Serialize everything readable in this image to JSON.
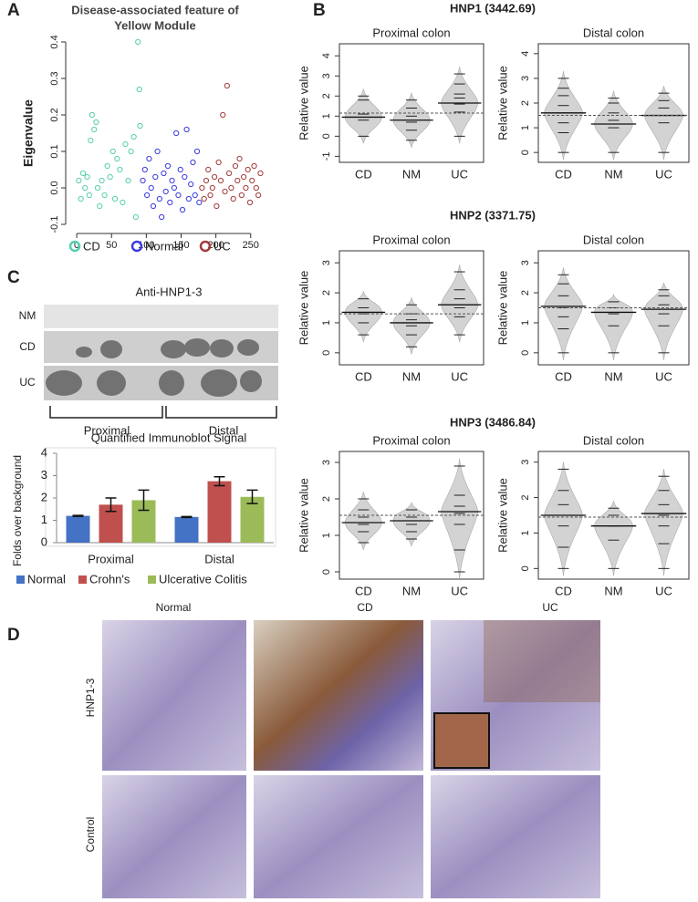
{
  "panel_labels": [
    "A",
    "B",
    "C",
    "D"
  ],
  "panel_b_headers": [
    "HNP1 (3442.69)",
    "HNP2 (3371.75)",
    "HNP3 (3486.84)"
  ],
  "blot": {
    "title": "Anti-HNP1-3",
    "rows": [
      "NM",
      "CD",
      "UC"
    ],
    "groups": [
      "Proximal",
      "Distal"
    ]
  },
  "micrographs": {
    "columns": [
      "Normal",
      "CD",
      "UC"
    ],
    "rows": [
      "HNP1-3",
      "Control"
    ]
  },
  "chart_data": [
    {
      "type": "scatter",
      "title": [
        "Disease-associated feature of",
        "Yellow Module"
      ],
      "ylabel": "Eigenvalue",
      "xlim": [
        -8,
        270
      ],
      "ylim": [
        -0.11,
        0.41
      ],
      "xticks": [
        0,
        50,
        100,
        150,
        200,
        250
      ],
      "yticks": [
        -0.1,
        {
          "value": 0,
          "label": "0.0"
        },
        0.1,
        0.2,
        0.3,
        0.4
      ],
      "series": [
        {
          "name": "CD",
          "color": "#55cfae",
          "x": [
            3,
            6,
            9,
            12,
            15,
            18,
            20,
            22,
            25,
            28,
            30,
            33,
            36,
            40,
            44,
            48,
            52,
            55,
            58,
            62,
            66,
            70,
            74,
            78,
            82,
            85,
            88,
            90,
            91
          ],
          "values": [
            0.02,
            -0.03,
            0.04,
            0.0,
            0.03,
            -0.02,
            0.13,
            0.2,
            0.16,
            0.18,
            0.0,
            -0.05,
            0.02,
            -0.02,
            0.06,
            0.03,
            0.1,
            -0.03,
            0.08,
            0.05,
            -0.04,
            0.12,
            0.02,
            0.1,
            0.14,
            -0.08,
            0.4,
            0.27,
            0.17
          ]
        },
        {
          "name": "Normal",
          "color": "#3b3be0",
          "x": [
            95,
            98,
            101,
            104,
            107,
            110,
            113,
            116,
            119,
            122,
            125,
            128,
            131,
            134,
            137,
            140,
            143,
            146,
            149,
            152,
            155,
            158,
            161,
            164,
            167,
            170,
            173,
            176
          ],
          "values": [
            0.02,
            0.05,
            -0.02,
            0.08,
            0.0,
            -0.05,
            0.03,
            0.1,
            -0.03,
            -0.08,
            0.04,
            -0.01,
            0.06,
            -0.04,
            0.02,
            0.0,
            0.15,
            -0.02,
            0.05,
            -0.06,
            0.03,
            0.16,
            -0.03,
            0.01,
            0.07,
            -0.02,
            0.1,
            -0.04
          ]
        },
        {
          "name": "UC",
          "color": "#a33a3a",
          "x": [
            180,
            183,
            186,
            189,
            192,
            195,
            198,
            201,
            204,
            207,
            210,
            213,
            216,
            219,
            222,
            225,
            228,
            231,
            234,
            237,
            240,
            243,
            246,
            249,
            252,
            255,
            258,
            261,
            264
          ],
          "values": [
            0.0,
            -0.03,
            0.02,
            0.05,
            -0.02,
            0.0,
            0.03,
            -0.05,
            0.07,
            0.02,
            0.2,
            -0.01,
            0.28,
            0.04,
            0.0,
            -0.03,
            0.06,
            0.02,
            0.08,
            -0.02,
            0.03,
            0.0,
            0.05,
            -0.04,
            0.02,
            0.06,
            0.0,
            -0.02,
            0.04
          ]
        }
      ]
    },
    {
      "type": "beanplot",
      "title": "Proximal colon",
      "ylabel": "Relative value",
      "categories": [
        "CD",
        "NM",
        "UC"
      ],
      "ylim": [
        -1.3,
        4.6
      ],
      "yticks": [
        -1,
        0,
        1,
        2,
        3,
        4
      ],
      "values": [
        [
          0,
          0.8,
          1.1,
          1.8,
          2.0
        ],
        [
          -0.2,
          0.3,
          0.7,
          1.0,
          1.4,
          1.8
        ],
        [
          0,
          1.2,
          1.6,
          1.9,
          2.1,
          2.6,
          3.1
        ]
      ],
      "means": [
        0.95,
        0.8,
        1.65
      ],
      "overall_mean": 1.15
    },
    {
      "type": "beanplot",
      "title": "Distal colon",
      "ylabel": "Relative value",
      "categories": [
        "CD",
        "NM",
        "UC"
      ],
      "ylim": [
        -0.4,
        4.4
      ],
      "yticks": [
        0,
        1,
        2,
        3,
        4
      ],
      "values": [
        [
          0,
          0.8,
          1.2,
          1.6,
          1.9,
          2.3,
          2.6,
          3.0
        ],
        [
          0,
          1.0,
          1.3,
          1.6,
          2.0,
          2.2
        ],
        [
          0,
          1.2,
          1.5,
          1.8,
          2.1,
          2.4
        ]
      ],
      "means": [
        1.6,
        1.15,
        1.5
      ],
      "overall_mean": 1.5
    },
    {
      "type": "beanplot",
      "title": "Proximal colon",
      "ylabel": "Relative value",
      "categories": [
        "CD",
        "NM",
        "UC"
      ],
      "ylim": [
        -0.4,
        3.4
      ],
      "yticks": [
        0,
        1,
        2,
        3
      ],
      "values": [
        [
          0.6,
          1.0,
          1.3,
          1.5,
          1.8
        ],
        [
          0.2,
          0.6,
          0.9,
          1.1,
          1.3,
          1.6
        ],
        [
          0.6,
          1.2,
          1.5,
          1.8,
          2.1,
          2.7
        ]
      ],
      "means": [
        1.35,
        1.0,
        1.6
      ],
      "overall_mean": 1.3
    },
    {
      "type": "beanplot",
      "title": "Distal colon",
      "ylabel": "Relative value",
      "categories": [
        "CD",
        "NM",
        "UC"
      ],
      "ylim": [
        -0.4,
        3.4
      ],
      "yticks": [
        0,
        1,
        2,
        3
      ],
      "values": [
        [
          0,
          0.8,
          1.2,
          1.5,
          1.9,
          2.3,
          2.6
        ],
        [
          0,
          0.9,
          1.3,
          1.5,
          1.7
        ],
        [
          0,
          0.9,
          1.3,
          1.6,
          1.9,
          2.1
        ]
      ],
      "means": [
        1.55,
        1.35,
        1.45
      ],
      "overall_mean": 1.5
    },
    {
      "type": "beanplot",
      "title": "Proximal colon",
      "ylabel": "Relative value",
      "categories": [
        "CD",
        "NM",
        "UC"
      ],
      "ylim": [
        -0.2,
        3.3
      ],
      "yticks": [
        0,
        1,
        2,
        3
      ],
      "values": [
        [
          0.8,
          1.1,
          1.3,
          1.5,
          1.7,
          2.0
        ],
        [
          0.9,
          1.1,
          1.3,
          1.5,
          1.7
        ],
        [
          0,
          0.6,
          1.3,
          1.6,
          1.8,
          2.1,
          2.9
        ]
      ],
      "means": [
        1.35,
        1.4,
        1.65
      ],
      "overall_mean": 1.55
    },
    {
      "type": "beanplot",
      "title": "Distal colon",
      "ylabel": "Relative value",
      "categories": [
        "CD",
        "NM",
        "UC"
      ],
      "ylim": [
        -0.3,
        3.3
      ],
      "yticks": [
        0,
        1,
        2,
        3
      ],
      "values": [
        [
          0,
          0.6,
          1.2,
          1.5,
          1.8,
          2.2,
          2.8
        ],
        [
          0,
          0.8,
          1.2,
          1.5,
          1.7
        ],
        [
          0,
          0.7,
          1.2,
          1.5,
          1.8,
          2.2,
          2.6
        ]
      ],
      "means": [
        1.5,
        1.2,
        1.55
      ],
      "overall_mean": 1.45
    },
    {
      "type": "bar",
      "title": "Quantified Immunoblot Signal",
      "ylabel": "Folds over background",
      "categories": [
        "Proximal",
        "Distal"
      ],
      "ylim": [
        0,
        4
      ],
      "yticks": [
        0,
        1,
        2,
        3,
        4
      ],
      "series": [
        {
          "name": "Normal",
          "color": "#4472c4",
          "values": [
            1.2,
            1.15
          ],
          "errors": [
            0.02,
            0.02
          ]
        },
        {
          "name": "Crohn's",
          "color": "#c0504d",
          "values": [
            1.7,
            2.75
          ],
          "errors": [
            0.3,
            0.2
          ]
        },
        {
          "name": "Ulcerative Colitis",
          "color": "#9bbb59",
          "values": [
            1.9,
            2.05
          ],
          "errors": [
            0.45,
            0.3
          ]
        }
      ]
    }
  ]
}
